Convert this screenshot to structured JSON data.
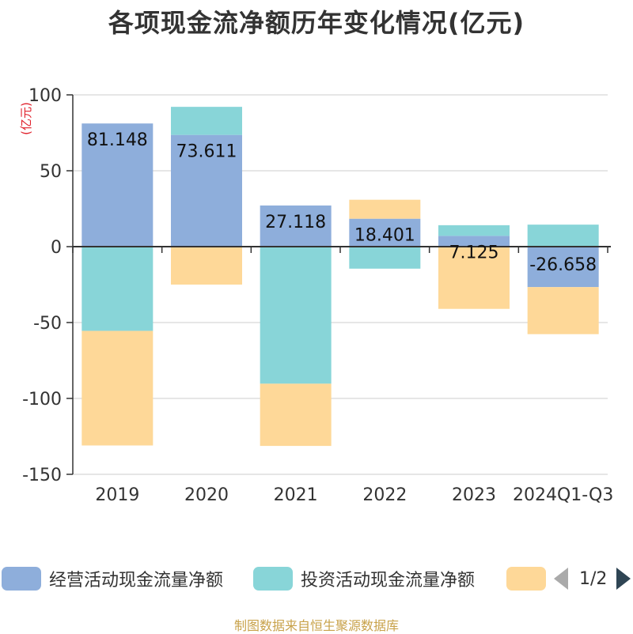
{
  "title": "各项现金流净额历年变化情况(亿元)",
  "unit_label": "(亿元)",
  "source": "制图数据来自恒生聚源数据库",
  "pager": "1/2",
  "colors": {
    "operating": "#8eaedb",
    "investing": "#88d5d8",
    "financing": "#fed898",
    "axis": "#333333",
    "grid": "#cccccc",
    "unit": "#e0202b"
  },
  "legend": [
    {
      "name": "经营活动现金流量净额",
      "color": "#8eaedb"
    },
    {
      "name": "投资活动现金流量净额",
      "color": "#88d5d8"
    },
    {
      "name": "",
      "color": "#fed898"
    }
  ],
  "chart_data": {
    "type": "bar",
    "stacked": true,
    "categories": [
      "2019",
      "2020",
      "2021",
      "2022",
      "2023",
      "2024Q1-Q3"
    ],
    "ylim": [
      -150,
      100
    ],
    "yticks": [
      100,
      50,
      0,
      -50,
      -100,
      -150
    ],
    "ylabel": "(亿元)",
    "series": [
      {
        "name": "经营活动现金流量净额",
        "values": [
          81.148,
          73.611,
          27.118,
          18.401,
          7.125,
          -26.658
        ],
        "labels": [
          "81.148",
          "73.611",
          "27.118",
          "18.401",
          "7.125",
          "-26.658"
        ]
      },
      {
        "name": "投资活动现金流量净额",
        "values": [
          -55.5,
          18.5,
          -90.3,
          -14.5,
          7.0,
          14.5
        ]
      },
      {
        "values": [
          -75.5,
          -25.0,
          -41.0,
          12.5,
          -41.0,
          -31.0
        ]
      }
    ],
    "grid": true,
    "legend_position": "bottom"
  }
}
